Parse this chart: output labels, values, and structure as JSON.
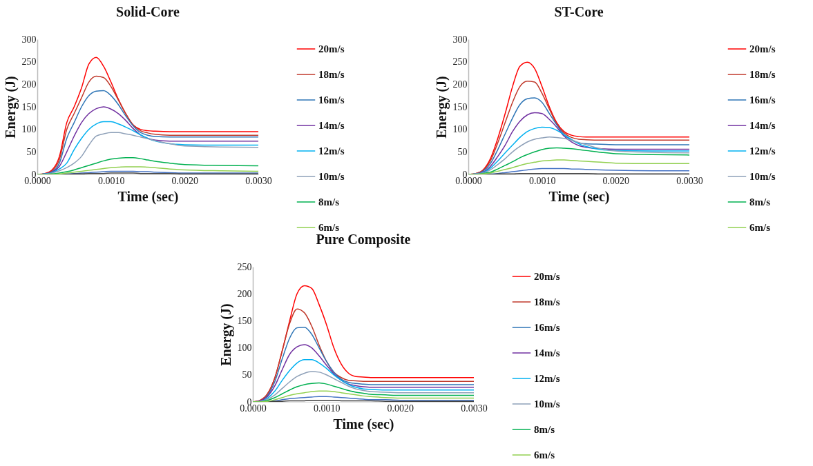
{
  "chart_data": [
    {
      "type": "line",
      "title": "Solid-Core",
      "xlabel": "Time (sec)",
      "ylabel": "Energy (J)",
      "xlim": [
        0,
        0.003
      ],
      "xticks": [
        {
          "value": 0,
          "label": "0.0000"
        },
        {
          "value": 0.001,
          "label": "0.0010"
        },
        {
          "value": 0.002,
          "label": "0.0020"
        },
        {
          "value": 0.003,
          "label": "0.0030"
        }
      ],
      "ylim": [
        0,
        300
      ],
      "yticks": [
        0,
        50,
        100,
        150,
        200,
        250,
        300
      ],
      "grid": false,
      "legend": "right",
      "x": [
        0,
        0.0001,
        0.0002,
        0.0003,
        0.0004,
        0.0005,
        0.0006,
        0.0007,
        0.0008,
        0.0009,
        0.001,
        0.0011,
        0.0012,
        0.0013,
        0.0014,
        0.0015,
        0.0016,
        0.0018,
        0.002,
        0.0025,
        0.003
      ],
      "series": [
        {
          "name": "20m/s",
          "color": "#ff0000",
          "values": [
            0,
            2,
            10,
            40,
            115,
            150,
            192,
            245,
            260,
            240,
            205,
            167,
            135,
            110,
            100,
            97,
            96,
            95,
            95,
            95,
            95
          ]
        },
        {
          "name": "18m/s",
          "color": "#c0392b",
          "values": [
            0,
            1,
            8,
            33,
            100,
            135,
            170,
            205,
            218,
            215,
            195,
            165,
            135,
            110,
            97,
            92,
            89,
            87,
            87,
            87,
            87
          ]
        },
        {
          "name": "16m/s",
          "color": "#2e75b6",
          "values": [
            0,
            1,
            6,
            25,
            80,
            115,
            150,
            175,
            185,
            186,
            175,
            155,
            130,
            108,
            93,
            87,
            84,
            83,
            83,
            83,
            83
          ]
        },
        {
          "name": "14m/s",
          "color": "#7030a0",
          "values": [
            0,
            1,
            5,
            18,
            50,
            85,
            115,
            135,
            146,
            150,
            145,
            135,
            120,
            102,
            88,
            80,
            76,
            74,
            74,
            74,
            74
          ]
        },
        {
          "name": "12m/s",
          "color": "#00b0f0",
          "values": [
            0,
            1,
            4,
            12,
            25,
            55,
            80,
            100,
            112,
            117,
            117,
            112,
            105,
            97,
            88,
            80,
            74,
            68,
            66,
            65,
            65
          ]
        },
        {
          "name": "10m/s",
          "color": "#8eA0b8",
          "values": [
            0,
            0,
            3,
            8,
            15,
            25,
            40,
            65,
            85,
            90,
            93,
            93,
            90,
            87,
            83,
            79,
            75,
            68,
            63,
            61,
            60
          ]
        },
        {
          "name": "8m/s",
          "color": "#00b050",
          "values": [
            0,
            0,
            1,
            3,
            6,
            10,
            15,
            20,
            25,
            30,
            34,
            36,
            37,
            37,
            35,
            32,
            29,
            25,
            22,
            20,
            19
          ]
        },
        {
          "name": "6m/s",
          "color": "#92d050",
          "values": [
            0,
            0,
            0,
            1,
            3,
            5,
            7,
            9,
            11,
            13,
            15,
            16,
            17,
            17,
            17,
            16,
            15,
            12,
            10,
            8,
            7
          ]
        },
        {
          "color": "#4472c4",
          "values": [
            0,
            0,
            0,
            0,
            1,
            2,
            3,
            4,
            5,
            6,
            7,
            7,
            7,
            7,
            6,
            6,
            5,
            4,
            3,
            3,
            3
          ]
        },
        {
          "color": "#404040",
          "values": [
            null,
            null,
            0,
            0,
            0,
            1,
            1,
            2,
            2,
            2,
            3,
            3,
            3,
            3,
            2,
            2,
            2,
            2,
            1,
            1,
            1
          ]
        }
      ]
    },
    {
      "type": "line",
      "title": "ST-Core",
      "xlabel": "Time (sec)",
      "ylabel": "Energy (J)",
      "xlim": [
        0,
        0.003
      ],
      "xticks": [
        {
          "value": 0,
          "label": "0.0000"
        },
        {
          "value": 0.001,
          "label": "0.0010"
        },
        {
          "value": 0.002,
          "label": "0.0020"
        },
        {
          "value": 0.003,
          "label": "0.0030"
        }
      ],
      "ylim": [
        0,
        300
      ],
      "yticks": [
        0,
        50,
        100,
        150,
        200,
        250,
        300
      ],
      "grid": false,
      "legend": "right",
      "x": [
        0,
        0.0001,
        0.0002,
        0.0003,
        0.0004,
        0.0005,
        0.0006,
        0.0007,
        0.0008,
        0.0009,
        0.001,
        0.0011,
        0.0012,
        0.0013,
        0.0014,
        0.0015,
        0.0016,
        0.0018,
        0.002,
        0.0025,
        0.003
      ],
      "series": [
        {
          "name": "20m/s",
          "color": "#ff0000",
          "values": [
            0,
            2,
            10,
            35,
            80,
            135,
            195,
            240,
            249,
            235,
            195,
            150,
            115,
            95,
            87,
            84,
            83,
            83,
            83,
            83,
            83
          ]
        },
        {
          "name": "18m/s",
          "color": "#c0392b",
          "values": [
            0,
            2,
            9,
            30,
            70,
            115,
            160,
            195,
            207,
            205,
            180,
            145,
            112,
            92,
            82,
            78,
            77,
            76,
            76,
            76,
            76
          ]
        },
        {
          "name": "16m/s",
          "color": "#2e75b6",
          "values": [
            0,
            1,
            7,
            24,
            55,
            90,
            125,
            155,
            168,
            170,
            160,
            135,
            110,
            88,
            76,
            70,
            68,
            67,
            66,
            66,
            66
          ]
        },
        {
          "name": "14m/s",
          "color": "#7030a0",
          "values": [
            0,
            1,
            5,
            18,
            40,
            65,
            95,
            118,
            132,
            137,
            135,
            122,
            105,
            85,
            72,
            64,
            60,
            57,
            56,
            56,
            56
          ]
        },
        {
          "name": "12m/s",
          "color": "#00b0f0",
          "values": [
            0,
            1,
            4,
            14,
            30,
            48,
            65,
            82,
            95,
            102,
            105,
            104,
            98,
            88,
            78,
            68,
            62,
            55,
            53,
            52,
            52
          ]
        },
        {
          "name": "10m/s",
          "color": "#8eA0b8",
          "values": [
            0,
            1,
            3,
            10,
            22,
            35,
            50,
            62,
            72,
            78,
            81,
            83,
            82,
            80,
            76,
            71,
            66,
            57,
            52,
            49,
            48
          ]
        },
        {
          "name": "8m/s",
          "color": "#00b050",
          "values": [
            0,
            0,
            2,
            5,
            12,
            20,
            28,
            37,
            44,
            50,
            55,
            58,
            59,
            58,
            57,
            55,
            53,
            49,
            46,
            44,
            43
          ]
        },
        {
          "name": "6m/s",
          "color": "#92d050",
          "values": [
            0,
            0,
            1,
            3,
            7,
            11,
            15,
            20,
            24,
            27,
            30,
            31,
            32,
            32,
            31,
            30,
            29,
            27,
            25,
            24,
            24
          ]
        },
        {
          "color": "#4472c4",
          "values": [
            0,
            0,
            0,
            1,
            2,
            4,
            6,
            8,
            10,
            12,
            13,
            13,
            13,
            13,
            12,
            12,
            11,
            10,
            9,
            8,
            8
          ]
        },
        {
          "color": "#404040",
          "values": [
            0,
            0,
            0,
            0,
            1,
            1,
            1,
            2,
            2,
            2,
            2,
            2,
            2,
            2,
            2,
            2,
            2,
            1,
            1,
            1,
            1
          ]
        }
      ]
    },
    {
      "type": "line",
      "title": "Pure Composite",
      "xlabel": "Time (sec)",
      "ylabel": "Energy (J)",
      "xlim": [
        0,
        0.003
      ],
      "xticks": [
        {
          "value": 0,
          "label": "0.0000"
        },
        {
          "value": 0.001,
          "label": "0.0010"
        },
        {
          "value": 0.002,
          "label": "0.0020"
        },
        {
          "value": 0.003,
          "label": "0.0030"
        }
      ],
      "ylim": [
        0,
        250
      ],
      "yticks": [
        0,
        50,
        100,
        150,
        200,
        250
      ],
      "grid": false,
      "legend": "right",
      "x": [
        0,
        0.0001,
        0.0002,
        0.0003,
        0.0004,
        0.0005,
        0.0006,
        0.0007,
        0.0008,
        0.0009,
        0.001,
        0.0011,
        0.0012,
        0.0013,
        0.0014,
        0.0015,
        0.0016,
        0.0018,
        0.002,
        0.0025,
        0.003
      ],
      "series": [
        {
          "name": "20m/s",
          "color": "#ff0000",
          "values": [
            0,
            3,
            15,
            45,
            95,
            150,
            200,
            215,
            210,
            180,
            143,
            100,
            70,
            53,
            47,
            46,
            45,
            45,
            45,
            45,
            45
          ]
        },
        {
          "name": "18m/s",
          "color": "#c0392b",
          "values": [
            0,
            3,
            15,
            45,
            95,
            145,
            172,
            165,
            140,
            105,
            75,
            55,
            45,
            40,
            39,
            38,
            38,
            38,
            38,
            38,
            38
          ]
        },
        {
          "name": "16m/s",
          "color": "#2e75b6",
          "values": [
            0,
            2,
            12,
            38,
            80,
            118,
            137,
            138,
            125,
            100,
            75,
            55,
            42,
            36,
            34,
            33,
            32,
            32,
            32,
            32,
            32
          ]
        },
        {
          "name": "14m/s",
          "color": "#7030a0",
          "values": [
            0,
            2,
            10,
            30,
            60,
            88,
            102,
            106,
            100,
            85,
            68,
            52,
            40,
            33,
            30,
            28,
            27,
            27,
            27,
            27,
            27
          ]
        },
        {
          "name": "12m/s",
          "color": "#00b0f0",
          "values": [
            0,
            1,
            7,
            20,
            40,
            58,
            72,
            78,
            78,
            72,
            62,
            50,
            40,
            32,
            27,
            24,
            23,
            22,
            22,
            22,
            22
          ]
        },
        {
          "name": "10m/s",
          "color": "#8eA0b8",
          "values": [
            0,
            1,
            5,
            13,
            25,
            37,
            47,
            53,
            56,
            55,
            50,
            43,
            36,
            29,
            24,
            21,
            19,
            18,
            17,
            17,
            17
          ]
        },
        {
          "name": "8m/s",
          "color": "#00b050",
          "values": [
            0,
            0,
            3,
            8,
            15,
            22,
            28,
            32,
            34,
            35,
            33,
            29,
            25,
            21,
            18,
            16,
            14,
            13,
            12,
            12,
            12
          ]
        },
        {
          "name": "6m/s",
          "color": "#92d050",
          "values": [
            0,
            0,
            1,
            4,
            8,
            12,
            15,
            17,
            19,
            20,
            20,
            19,
            17,
            15,
            13,
            11,
            10,
            8,
            7,
            7,
            7
          ]
        },
        {
          "color": "#4472c4",
          "values": [
            0,
            0,
            1,
            2,
            4,
            6,
            7,
            8,
            9,
            10,
            10,
            9,
            8,
            7,
            6,
            5,
            4,
            4,
            3,
            3,
            3
          ]
        },
        {
          "color": "#404040",
          "values": [
            0,
            0,
            0,
            1,
            1,
            2,
            2,
            2,
            3,
            3,
            3,
            3,
            2,
            2,
            2,
            2,
            2,
            1,
            1,
            1,
            1
          ]
        }
      ]
    }
  ]
}
